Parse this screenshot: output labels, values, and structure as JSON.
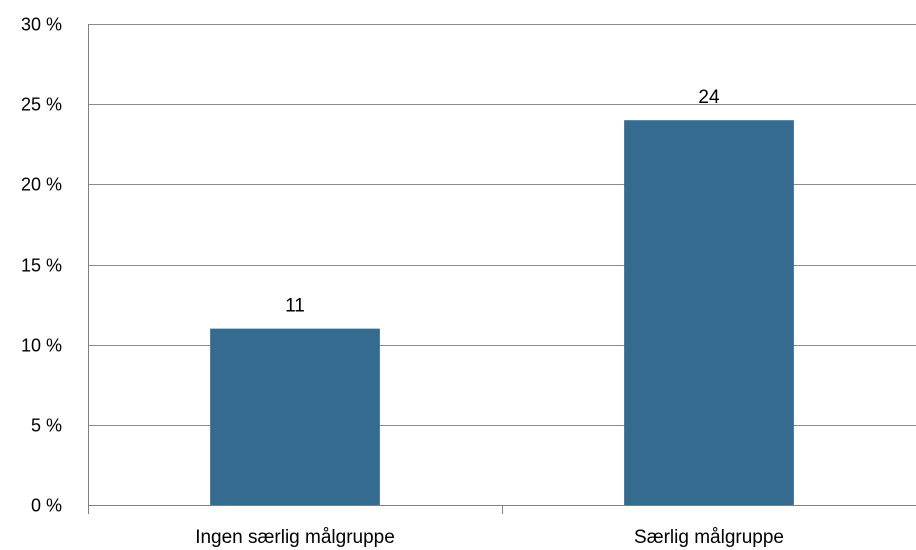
{
  "chart_data": {
    "type": "bar",
    "categories": [
      "Ingen særlig målgruppe",
      "Særlig målgruppe"
    ],
    "values": [
      11,
      24
    ],
    "data_labels": [
      "11",
      "24"
    ],
    "ylim": [
      0,
      30
    ],
    "yticks": [
      0,
      5,
      10,
      15,
      20,
      25,
      30
    ],
    "ytick_labels": [
      "0 %",
      "5 %",
      "10 %",
      "15 %",
      "20 %",
      "25 %",
      "30 %"
    ],
    "title": "",
    "xlabel": "",
    "ylabel": "",
    "grid": true,
    "legend": "none",
    "colors": {
      "bar": "#356b8f",
      "grid": "#8c8c8c",
      "axis": "#7f7f7f"
    }
  }
}
